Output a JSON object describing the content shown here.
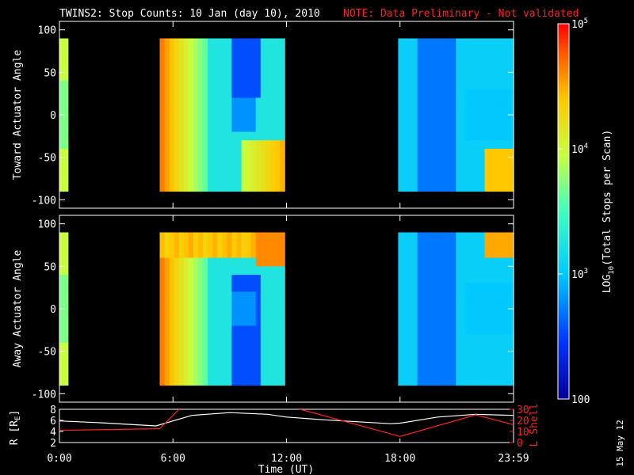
{
  "title": "TWINS2: Stop Counts: 10 Jan (day  10), 2010",
  "note": "NOTE: Data Preliminary - Not validated",
  "date_stamp": "15 May 12",
  "colors": {
    "note": "#ff2020",
    "r_line": "#ffffff",
    "l_shell_line": "#ff2020",
    "background": "#000000"
  },
  "chart_data": [
    {
      "type": "heatmap",
      "panel": "toward",
      "ylabel": "Toward Actuator Angle",
      "ylim": [
        -110,
        110
      ],
      "yticks": [
        100,
        50,
        0,
        -50,
        -100
      ],
      "xlim_hours": [
        0,
        24
      ],
      "data_coverage_hours": [
        [
          0,
          0.45
        ],
        [
          5.3,
          11.9
        ],
        [
          17.9,
          24
        ]
      ],
      "dominant_log10_value": 3.3
    },
    {
      "type": "heatmap",
      "panel": "away",
      "ylabel": "Away Actuator Angle",
      "ylim": [
        -110,
        110
      ],
      "yticks": [
        100,
        50,
        0,
        -50,
        -100
      ],
      "xlim_hours": [
        0,
        24
      ],
      "data_coverage_hours": [
        [
          0,
          0.45
        ],
        [
          5.3,
          11.9
        ],
        [
          17.9,
          24
        ]
      ],
      "dominant_log10_value": 3.3
    },
    {
      "type": "line",
      "panel": "orbit",
      "ylabel": "R [R",
      "ylabel_sub": "E",
      "ylabel_end": "]",
      "ylim": [
        2,
        8
      ],
      "yticks": [
        2,
        4,
        6,
        8
      ],
      "y2label": "L Shell",
      "y2lim": [
        0,
        30
      ],
      "y2ticks": [
        0,
        10,
        20,
        30
      ],
      "xlabel": "Time (UT)",
      "xtick_labels": [
        "0:00",
        "6:00",
        "12:00",
        "18:00",
        "23:59"
      ],
      "xtick_hours": [
        0,
        6,
        12,
        18,
        24
      ],
      "series": [
        {
          "x": [
            0,
            2,
            5.1,
            7,
            9,
            11,
            12,
            14,
            17.5,
            18,
            20,
            22,
            24
          ],
          "y": [
            5.9,
            5.6,
            5.0,
            6.9,
            7.4,
            7.1,
            6.6,
            6.1,
            5.4,
            5.5,
            6.6,
            7.1,
            6.9
          ]
        },
        {
          "axis": "y2",
          "x": [
            0,
            5.3,
            6.5,
            12.5,
            18,
            22,
            24
          ],
          "y": [
            11,
            12.5,
            33,
            31,
            5.5,
            25,
            16
          ]
        }
      ]
    }
  ],
  "colorbar": {
    "label": "LOG",
    "label_sub": "10",
    "label_end": "(Total Stops per Scan)",
    "ticks": [
      {
        "label": "10",
        "sup": "5",
        "value": 5
      },
      {
        "label": "10",
        "sup": "4",
        "value": 4
      },
      {
        "label": "10",
        "sup": "3",
        "value": 3
      },
      {
        "label": "100",
        "sup": "",
        "value": 2
      }
    ],
    "range": [
      2,
      5
    ]
  }
}
